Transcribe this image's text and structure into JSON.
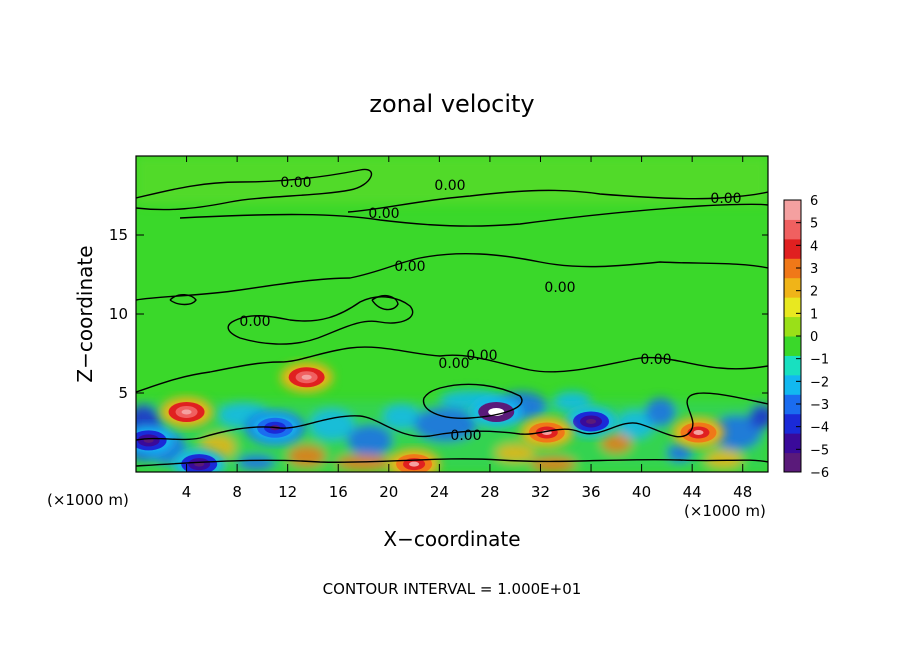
{
  "chart_data": {
    "type": "heatmap",
    "title": "zonal velocity",
    "xlabel": "X−coordinate",
    "ylabel": "Z−coordinate",
    "x_unit_label": "(×1000 m)",
    "footer": "CONTOUR INTERVAL = 1.000E+01",
    "xlim": [
      0,
      50
    ],
    "ylim": [
      0,
      20
    ],
    "x_ticks": [
      4,
      8,
      12,
      16,
      20,
      24,
      28,
      32,
      36,
      40,
      44,
      48
    ],
    "y_ticks": [
      5,
      10,
      15
    ],
    "colorbar": {
      "range": [
        -6,
        6
      ],
      "ticks": [
        "6",
        "5",
        "4",
        "3",
        "2",
        "1",
        "0",
        "−1",
        "−2",
        "−3",
        "−4",
        "−5",
        "−6"
      ],
      "colors": [
        "#5a1a7a",
        "#3a0a9a",
        "#1a2ad8",
        "#1a6cf0",
        "#12b8f0",
        "#18e0c0",
        "#3ad82a",
        "#9ae018",
        "#e8e820",
        "#f0b418",
        "#f07818",
        "#e02020",
        "#f06060",
        "#f4a0a0"
      ]
    },
    "contour_labels": [
      "0.00",
      "0.00",
      "0.00",
      "0.00",
      "0.00",
      "0.00",
      "0.00",
      "0.00",
      "0.00",
      "0.00",
      "0.00"
    ],
    "features": [
      {
        "x": 4,
        "z": 3.8,
        "value": 5,
        "kind": "positive"
      },
      {
        "x": 13.5,
        "z": 6.0,
        "value": 5,
        "kind": "positive"
      },
      {
        "x": 28.5,
        "z": 3.8,
        "value": -6,
        "kind": "negative"
      },
      {
        "x": 36,
        "z": 3.2,
        "value": -5,
        "kind": "negative"
      },
      {
        "x": 11,
        "z": 2.8,
        "value": -4,
        "kind": "negative"
      },
      {
        "x": 1,
        "z": 2.0,
        "value": -5,
        "kind": "negative"
      },
      {
        "x": 44.5,
        "z": 2.5,
        "value": 4,
        "kind": "positive"
      },
      {
        "x": 32.5,
        "z": 2.5,
        "value": 4,
        "kind": "positive"
      },
      {
        "x": 5,
        "z": 0.5,
        "value": -5,
        "kind": "negative"
      },
      {
        "x": 22,
        "z": 0.5,
        "value": 4,
        "kind": "positive"
      }
    ]
  }
}
